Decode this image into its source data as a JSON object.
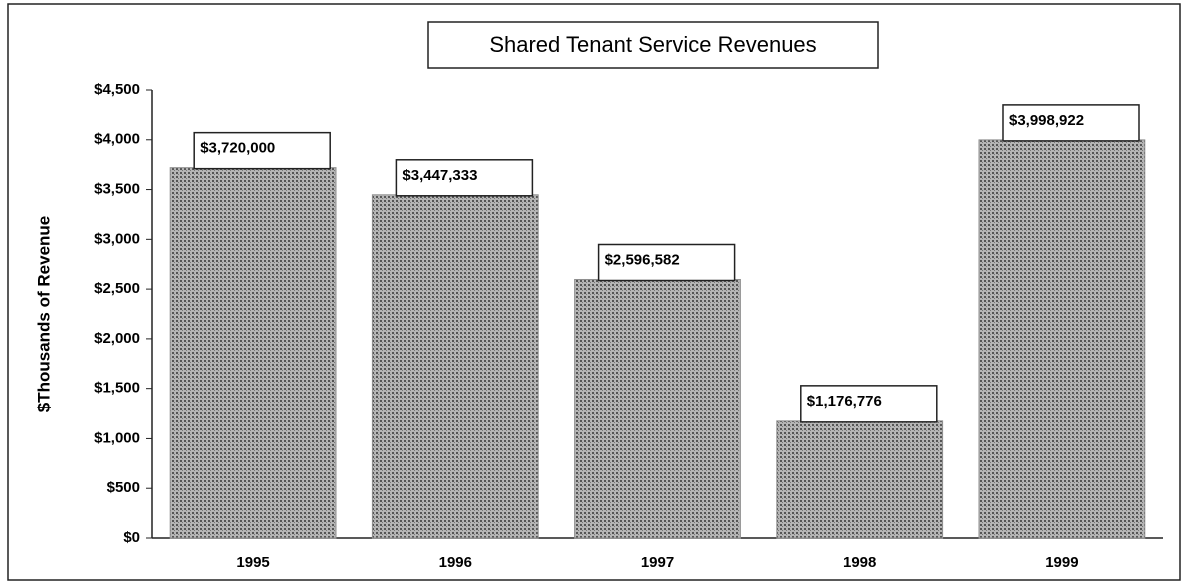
{
  "chart_data": {
    "type": "bar",
    "title": "Shared Tenant Service Revenues",
    "y_label": "$Thousands of Revenue",
    "categories": [
      "1995",
      "1996",
      "1997",
      "1998",
      "1999"
    ],
    "values": [
      3720,
      3447.333,
      2596.582,
      1176.776,
      3998.922
    ],
    "value_labels": [
      "$3,720,000",
      "$3,447,333",
      "$2,596,582",
      "$1,176,776",
      "$3,998,922"
    ],
    "color": "#8f8f8f",
    "ylim": [
      0,
      4500
    ],
    "yticks": [
      {
        "value": 0,
        "label": "$0"
      },
      {
        "value": 500,
        "label": "$500"
      },
      {
        "value": 1000,
        "label": "$1,000"
      },
      {
        "value": 1500,
        "label": "$1,500"
      },
      {
        "value": 2000,
        "label": "$2,000"
      },
      {
        "value": 2500,
        "label": "$2,500"
      },
      {
        "value": 3000,
        "label": "$3,000"
      },
      {
        "value": 3500,
        "label": "$3,500"
      },
      {
        "value": 4000,
        "label": "$4,000"
      },
      {
        "value": 4500,
        "label": "$4,500"
      }
    ],
    "grid": false
  }
}
